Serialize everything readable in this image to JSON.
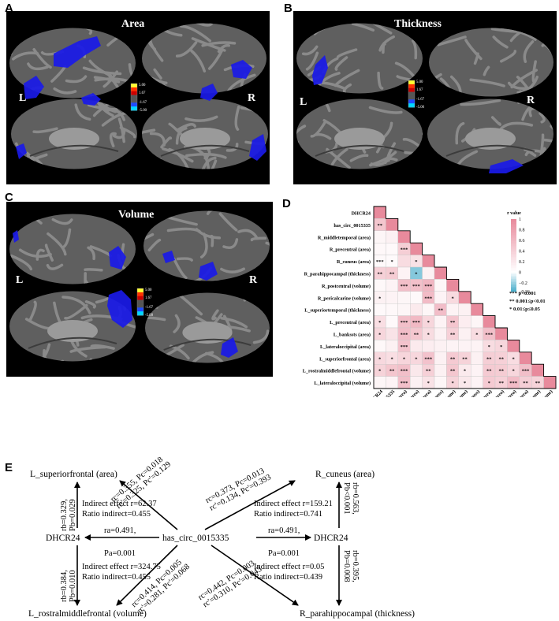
{
  "panels": {
    "a": {
      "letter": "A",
      "title": "Area",
      "left": "L",
      "right": "R",
      "colorbar": [
        "5.00",
        "1.67",
        "-1.67",
        "-5.00"
      ]
    },
    "b": {
      "letter": "B",
      "title": "Thickness",
      "left": "L",
      "right": "R",
      "colorbar": [
        "5.00",
        "1.67",
        "-1.67",
        "-5.00"
      ]
    },
    "c": {
      "letter": "C",
      "title": "Volume",
      "left": "L",
      "right": "R",
      "colorbar": [
        "5.00",
        "1.67",
        "-1.67",
        "-5.00"
      ]
    },
    "d": {
      "letter": "D"
    },
    "e": {
      "letter": "E"
    }
  },
  "chart_data": {
    "type": "heatmap",
    "shape": "lower-triangular",
    "labels": [
      "DHCR24",
      "has_circ_0015335",
      "R_middletemporal (area)",
      "R_precentral (area)",
      "R_cuneus (area)",
      "R_parahippocampal (thickness)",
      "R_postcentral (volume)",
      "R_pericalcarine (volume)",
      "L_superiortemporal (thickness)",
      "L_precentral (area)",
      "L_bankssts (area)",
      "L_lateraloccipital (area)",
      "L_superiorfrontal (area)",
      "L_rostralmiddlefrontal (volume)",
      "L_lateraloccipital (volume)"
    ],
    "values": [
      [
        1
      ],
      [
        0.49,
        1
      ],
      [
        0.08,
        0.12,
        1
      ],
      [
        0.06,
        0.05,
        0.42,
        1
      ],
      [
        0.05,
        0.04,
        0.3,
        0.25,
        1
      ],
      [
        0.4,
        0.44,
        0.1,
        -0.25,
        0.12,
        1
      ],
      [
        0.06,
        0.1,
        0.55,
        0.54,
        0.62,
        0.08,
        1
      ],
      [
        0.12,
        0.1,
        0.08,
        0.05,
        0.58,
        0.1,
        0.32,
        1
      ],
      [
        0.05,
        0.06,
        0.08,
        0.18,
        0.08,
        0.56,
        0.1,
        0.12,
        1
      ],
      [
        0.28,
        0.05,
        0.55,
        0.6,
        0.35,
        0.1,
        0.5,
        0.15,
        0.08,
        1
      ],
      [
        0.35,
        0.24,
        0.56,
        0.48,
        0.3,
        0.12,
        0.4,
        0.12,
        0.3,
        0.55,
        1
      ],
      [
        0.06,
        0.12,
        0.52,
        0.18,
        0.15,
        0.12,
        0.1,
        0.1,
        0.1,
        0.3,
        0.35,
        1
      ],
      [
        0.33,
        0.28,
        0.36,
        0.34,
        0.52,
        0.12,
        0.45,
        0.38,
        0.12,
        0.42,
        0.4,
        0.3,
        1
      ],
      [
        0.38,
        0.49,
        0.55,
        0.2,
        0.4,
        0.12,
        0.48,
        0.18,
        0.1,
        0.45,
        0.44,
        0.35,
        0.55,
        1
      ],
      [
        0.08,
        0.1,
        0.55,
        0.12,
        0.25,
        0.08,
        0.38,
        0.2,
        0.1,
        0.45,
        0.4,
        0.58,
        0.42,
        0.38,
        1
      ]
    ],
    "stars": [
      [
        ""
      ],
      [
        "**",
        ""
      ],
      [
        "",
        "",
        ""
      ],
      [
        "",
        "",
        "***",
        ""
      ],
      [
        "***",
        "*",
        "",
        "*",
        ""
      ],
      [
        "**",
        "**",
        "",
        "*",
        "",
        ""
      ],
      [
        "",
        "",
        "***",
        "***",
        "***",
        "",
        ""
      ],
      [
        "*",
        "",
        "",
        "",
        "***",
        "",
        "*",
        ""
      ],
      [
        "",
        "",
        "",
        "",
        "",
        "**",
        "",
        "",
        ""
      ],
      [
        "*",
        "",
        "***",
        "***",
        "*",
        "",
        "**",
        "",
        "",
        ""
      ],
      [
        "*",
        "",
        "***",
        "**",
        "*",
        "",
        "**",
        "",
        "*",
        "***",
        ""
      ],
      [
        "",
        "",
        "***",
        "",
        "",
        "",
        "",
        "",
        "",
        "*",
        "*",
        ""
      ],
      [
        "*",
        "*",
        "*",
        "*",
        "***",
        "",
        "**",
        "**",
        "",
        "**",
        "**",
        "*",
        ""
      ],
      [
        "*",
        "**",
        "***",
        "",
        "**",
        "",
        "**",
        "*",
        "",
        "**",
        "**",
        "*",
        "***",
        ""
      ],
      [
        "",
        "",
        "***",
        "",
        "*",
        "",
        "*",
        "*",
        "",
        "*",
        "**",
        "***",
        "**",
        "**",
        ""
      ]
    ],
    "colorbar_title": "r value",
    "colorbar_ticks": [
      "1",
      "0.8",
      "0.6",
      "0.4",
      "0.2",
      "0",
      "−0.2",
      "−0.36"
    ],
    "range": [
      -0.36,
      1
    ],
    "colors": {
      "high": "#e88a9c",
      "zero": "#ffffff",
      "low": "#4fb0cc"
    },
    "legend": [
      "*** p<0.001",
      "** 0.001≤p<0.01",
      "* 0.01≤p≤0.05"
    ]
  },
  "mediation": {
    "top_left_node": "L_superiorfrontal (area)",
    "top_right_node": "R_cuneus (area)",
    "left_dhcr": "DHCR24",
    "center": "has_circ_0015335",
    "right_dhcr": "DHCR24",
    "bottom_left_node": "L_rostralmiddlefrontal (volume)",
    "bottom_right_node": "R_parahippocampal (thickness)",
    "tl_path": [
      "rc=0.355, Pc=0.018",
      "rc'=0.325, Pc'=0.129"
    ],
    "tr_path": [
      "rc=0.373, Pc=0.013",
      "rc'=0.134, Pc'=0.393"
    ],
    "bl_path": [
      "rc=0.414, Pc=0.005",
      "rc'=0.281, Pc'=0.068"
    ],
    "br_path": [
      "rc=0.442, Pc=0.003",
      "rc'=0.310, Pc'=0.043"
    ],
    "left_up_b": [
      "rb=0.329,",
      "Pb=0.029"
    ],
    "left_down_b": [
      "rb=0.384,",
      "Pb=0.010"
    ],
    "right_up_b": [
      "rb=0.563,",
      "Pb<0.001"
    ],
    "right_down_b": [
      "rb=0.395,",
      "Pb=0.008"
    ],
    "left_a": [
      "ra=0.491,",
      "Pa=0.001"
    ],
    "right_a": [
      "ra=0.491,",
      "Pa=0.001"
    ],
    "ind_tl": [
      "Indirect effect r=62.37",
      "Ratio indirect=0.455"
    ],
    "ind_tr": [
      "Indirect effect r=159.21",
      "Ratio indirect=0.741"
    ],
    "ind_bl": [
      "Indirect effect r=324.75",
      "Ratio indirect=0.455"
    ],
    "ind_br": [
      "Indirect effect r=0.05",
      "Ratio indirect=0.439"
    ]
  }
}
